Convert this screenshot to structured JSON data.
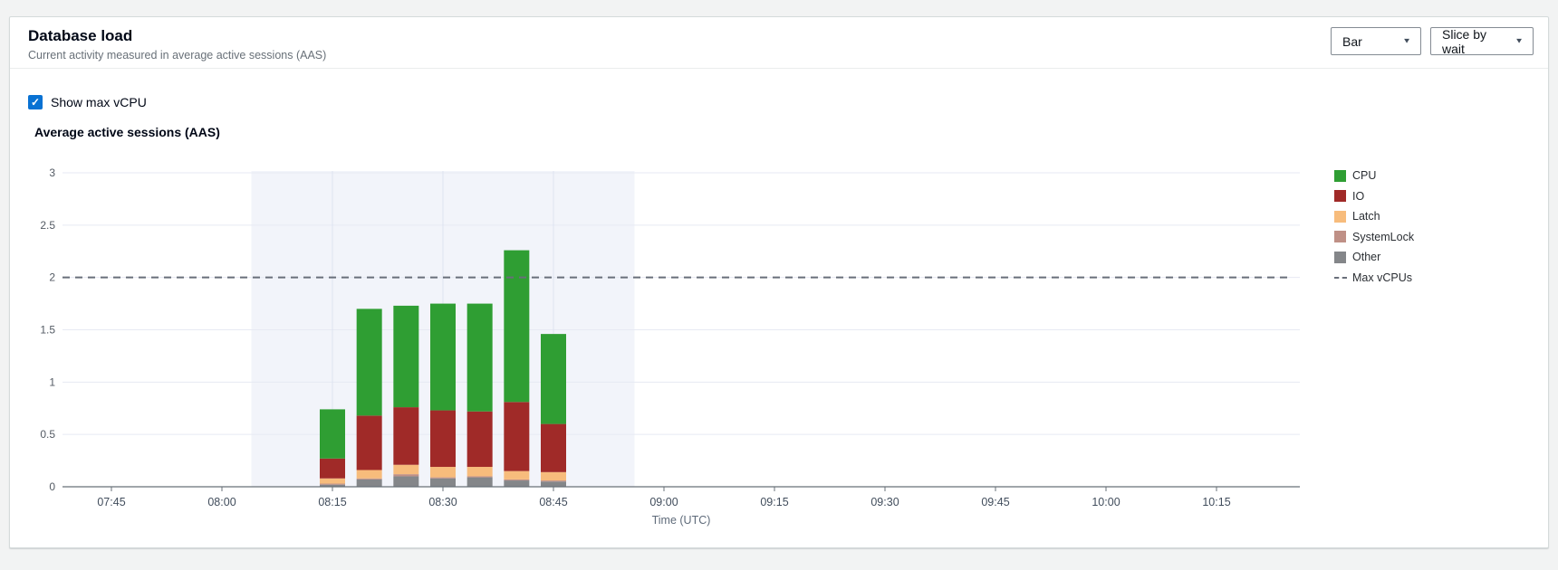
{
  "header": {
    "title": "Database load",
    "subtitle": "Current activity measured in average active sessions (AAS)"
  },
  "controls": {
    "chart_type": {
      "value": "Bar"
    },
    "slice_by": {
      "value": "Slice by wait"
    },
    "show_max_vcpu": {
      "label": "Show max vCPU",
      "checked": true
    }
  },
  "colors": {
    "accent_checkbox": "#0972d3",
    "max_vcpu_line": "#696f7a",
    "selection_band": "#f2f4fa",
    "gridline": "#e7eaf3",
    "axis": "#687078",
    "tick_text": "#4b5563"
  },
  "chart_data": {
    "type": "bar",
    "stacked": true,
    "title": "Average active sessions (AAS)",
    "xlabel": "Time (UTC)",
    "ylabel": "",
    "ylim": [
      0,
      3
    ],
    "yticks": [
      0,
      0.5,
      1,
      1.5,
      2,
      2.5,
      3
    ],
    "ytick_labels": [
      "0",
      "0.5",
      "1",
      "1.5",
      "2",
      "2.5",
      "3"
    ],
    "x_axis_ticks": [
      "07:45",
      "08:00",
      "08:15",
      "08:30",
      "08:45",
      "09:00",
      "09:15",
      "09:30",
      "09:45",
      "10:00",
      "10:15"
    ],
    "grid": true,
    "legend_position": "right",
    "max_vcpus": 2,
    "max_vcpus_label": "Max vCPUs",
    "selection_band": {
      "from": "08:04",
      "to": "08:56"
    },
    "categories": [
      "08:15",
      "08:20",
      "08:25",
      "08:30",
      "08:35",
      "08:40",
      "08:45"
    ],
    "series": [
      {
        "name": "CPU",
        "color": "#2f9e33",
        "values": [
          0.47,
          1.02,
          0.97,
          1.02,
          1.03,
          1.45,
          0.86
        ]
      },
      {
        "name": "IO",
        "color": "#a02a28",
        "values": [
          0.19,
          0.52,
          0.55,
          0.54,
          0.53,
          0.66,
          0.46
        ]
      },
      {
        "name": "Latch",
        "color": "#f7bc7c",
        "values": [
          0.05,
          0.08,
          0.09,
          0.1,
          0.09,
          0.08,
          0.08
        ]
      },
      {
        "name": "SystemLock",
        "color": "#bf9086",
        "values": [
          0.01,
          0.01,
          0.02,
          0.01,
          0.01,
          0.01,
          0.01
        ]
      },
      {
        "name": "Other",
        "color": "#848689",
        "values": [
          0.02,
          0.07,
          0.1,
          0.08,
          0.09,
          0.06,
          0.05
        ]
      }
    ]
  }
}
